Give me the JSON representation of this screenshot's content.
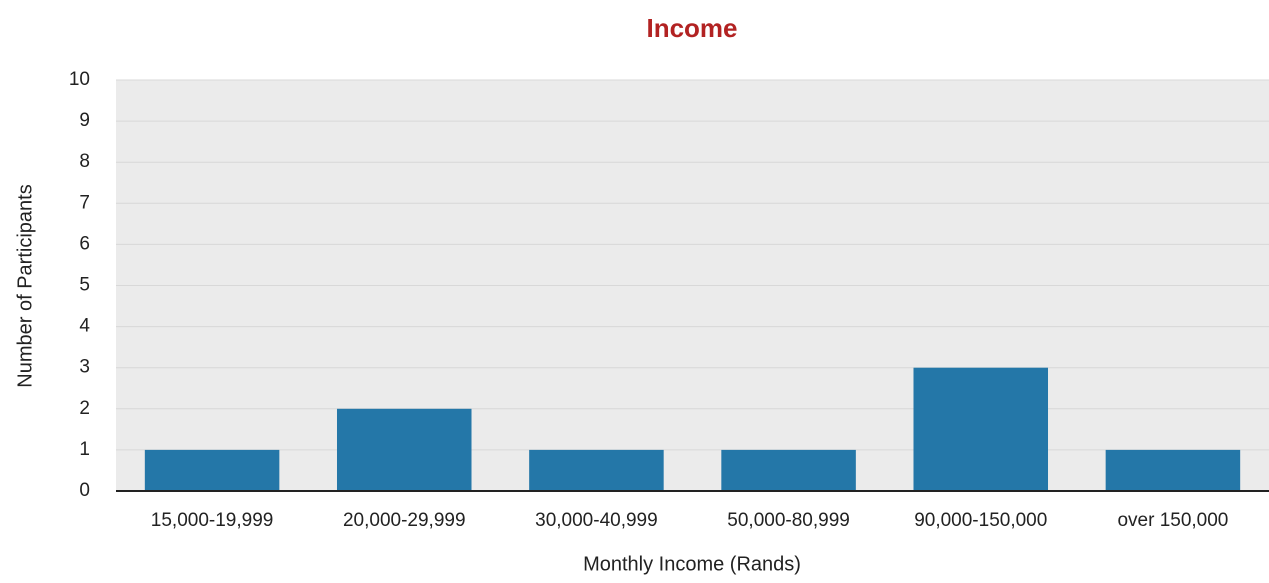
{
  "chart_data": {
    "type": "bar",
    "title": "Income",
    "x_label": "Monthly Income (Rands)",
    "y_label": "Number of Participants",
    "categories": [
      "15,000-19,999",
      "20,000-29,999",
      "30,000-40,999",
      "50,000-80,999",
      "90,000-150,000",
      "over 150,000"
    ],
    "values": [
      1,
      2,
      1,
      1,
      3,
      1
    ],
    "color": "#2477a8",
    "ylim": [
      0,
      10
    ],
    "yticks": [
      0,
      1,
      2,
      3,
      4,
      5,
      6,
      7,
      8,
      9,
      10
    ],
    "grid": true
  }
}
